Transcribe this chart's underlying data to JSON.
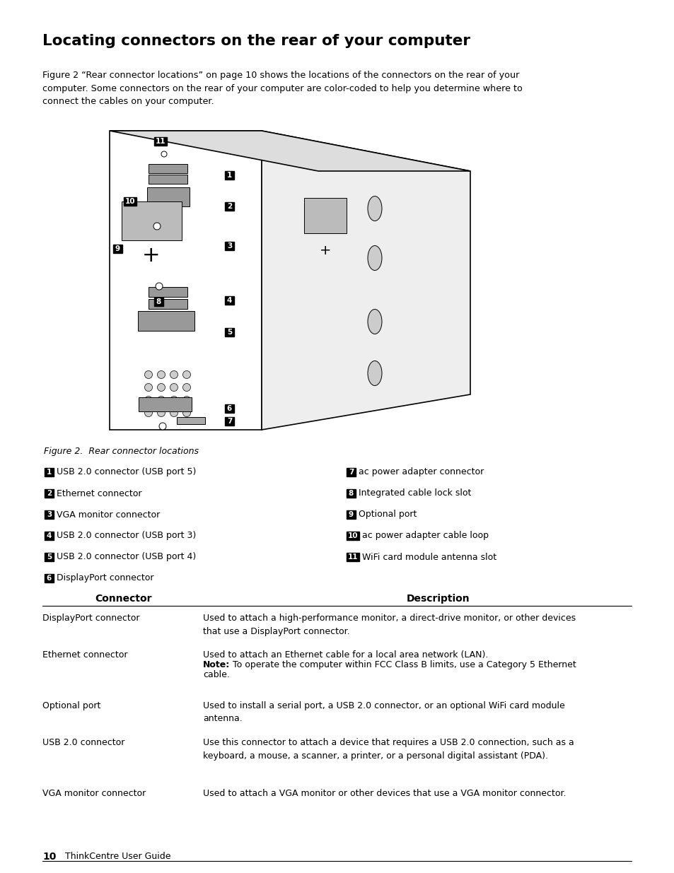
{
  "title": "Locating connectors on the rear of your computer",
  "intro_text": "Figure 2 “Rear connector locations” on page 10 shows the locations of the connectors on the rear of your\ncomputer. Some connectors on the rear of your computer are color-coded to help you determine where to\nconnect the cables on your computer.",
  "figure_caption": "Figure 2.  Rear connector locations",
  "legend_left": [
    [
      "1",
      "USB 2.0 connector (USB port 5)"
    ],
    [
      "2",
      "Ethernet connector"
    ],
    [
      "3",
      "VGA monitor connector"
    ],
    [
      "4",
      "USB 2.0 connector (USB port 3)"
    ],
    [
      "5",
      "USB 2.0 connector (USB port 4)"
    ],
    [
      "6",
      "DisplayPort connector"
    ]
  ],
  "legend_right": [
    [
      "7",
      "ac power adapter connector"
    ],
    [
      "8",
      "Integrated cable lock slot"
    ],
    [
      "9",
      "Optional port"
    ],
    [
      "10",
      "ac power adapter cable loop"
    ],
    [
      "11",
      "WiFi card module antenna slot"
    ]
  ],
  "table_headers": [
    "Connector",
    "Description"
  ],
  "table_rows": [
    [
      "DisplayPort connector",
      "Used to attach a high-performance monitor, a direct-drive monitor, or other devices\nthat use a DisplayPort connector."
    ],
    [
      "Ethernet connector",
      "Used to attach an Ethernet cable for a local area network (LAN).\nNote: To operate the computer within FCC Class B limits, use a Category 5 Ethernet\ncable."
    ],
    [
      "Optional port",
      "Used to install a serial port, a USB 2.0 connector, or an optional WiFi card module\nantenna."
    ],
    [
      "USB 2.0 connector",
      "Use this connector to attach a device that requires a USB 2.0 connection, such as a\nkeyboard, a mouse, a scanner, a printer, or a personal digital assistant (PDA)."
    ],
    [
      "VGA monitor connector",
      "Used to attach a VGA monitor or other devices that use a VGA monitor connector."
    ]
  ],
  "footer_number": "10",
  "footer_text": "ThinkCentre User Guide",
  "bg_color": "#ffffff",
  "text_color": "#000000"
}
